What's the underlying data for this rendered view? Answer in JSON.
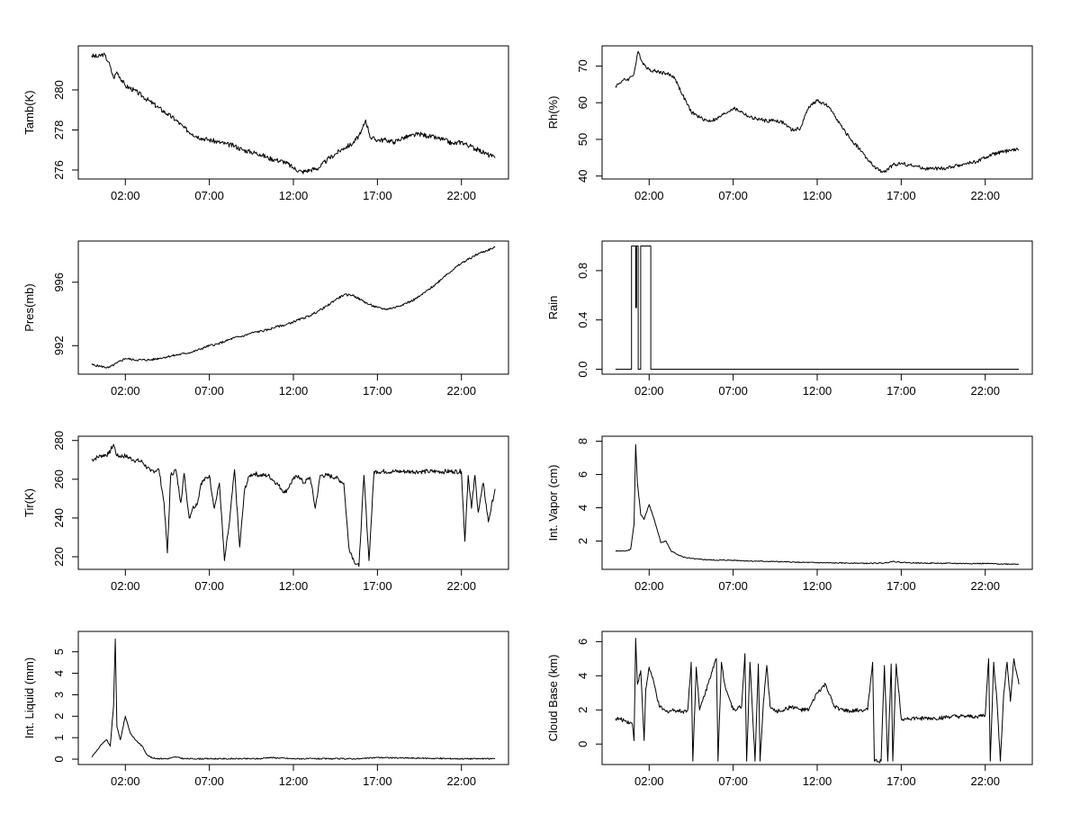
{
  "x_axis": {
    "ticks": [
      "02:00",
      "07:00",
      "12:00",
      "17:00",
      "22:00"
    ],
    "tick_hours": [
      2,
      7,
      12,
      17,
      22
    ],
    "range_hours": [
      -0.8,
      24.8
    ]
  },
  "chart_data": [
    {
      "type": "line",
      "ylabel": "Tamb(K)",
      "yticks": [
        276,
        278,
        280
      ],
      "ylim": [
        275.55,
        282.2
      ],
      "x": [
        0,
        0.4,
        0.7,
        1.0,
        1.3,
        1.5,
        2.0,
        2.5,
        3.0,
        3.5,
        4.0,
        4.5,
        5.0,
        5.5,
        6.0,
        6.5,
        7.0,
        7.5,
        8.0,
        8.5,
        9.0,
        9.5,
        10.0,
        10.5,
        11.0,
        11.5,
        12.0,
        12.5,
        13.0,
        13.5,
        14.0,
        14.5,
        15.0,
        15.5,
        16.0,
        16.3,
        16.6,
        17.0,
        17.5,
        18.0,
        18.5,
        19.0,
        19.5,
        20.0,
        20.5,
        21.0,
        21.5,
        22.0,
        22.5,
        23.0,
        23.5,
        24.0
      ],
      "values": [
        281.7,
        281.65,
        281.8,
        281.4,
        280.6,
        280.9,
        280.2,
        280.0,
        279.7,
        279.4,
        279.1,
        278.8,
        278.5,
        278.1,
        277.8,
        277.6,
        277.5,
        277.4,
        277.3,
        277.2,
        277.0,
        276.9,
        276.8,
        276.6,
        276.5,
        276.4,
        276.1,
        275.9,
        276.0,
        276.1,
        276.5,
        276.8,
        277.1,
        277.3,
        277.8,
        278.5,
        277.6,
        277.5,
        277.5,
        277.4,
        277.6,
        277.7,
        277.8,
        277.7,
        277.6,
        277.5,
        277.3,
        277.4,
        277.2,
        277.0,
        276.8,
        276.6
      ],
      "noise": 0.12
    },
    {
      "type": "line",
      "ylabel": "Rh(%)",
      "yticks": [
        40,
        50,
        60,
        70
      ],
      "ylim": [
        39.2,
        75.5
      ],
      "x": [
        0,
        0.4,
        0.8,
        1.1,
        1.35,
        1.6,
        2.0,
        2.5,
        3.0,
        3.5,
        4.0,
        4.5,
        5.0,
        5.5,
        6.0,
        6.5,
        7.0,
        7.5,
        8.0,
        8.5,
        9.0,
        9.5,
        10.0,
        10.5,
        11.0,
        11.5,
        12.0,
        12.5,
        13.0,
        13.5,
        14.0,
        14.5,
        15.0,
        15.5,
        16.0,
        16.5,
        17.0,
        17.5,
        18.0,
        18.5,
        19.0,
        19.5,
        20.0,
        20.5,
        21.0,
        21.5,
        22.0,
        22.5,
        23.0,
        23.5,
        24.0
      ],
      "values": [
        64.5,
        66,
        66.5,
        68,
        74,
        71,
        69,
        68.5,
        68,
        67,
        62,
        57.5,
        56,
        55,
        55.5,
        57,
        58.5,
        57.5,
        56,
        55.5,
        55,
        55.2,
        54.5,
        52.5,
        53,
        59,
        60.5,
        59.5,
        57,
        53,
        50,
        47.5,
        44.5,
        42,
        41,
        43,
        43.5,
        43,
        42.5,
        42,
        42,
        42,
        42.5,
        43,
        43.5,
        44,
        45,
        46,
        46.5,
        47,
        47.2
      ],
      "noise": 0.5
    },
    {
      "type": "line",
      "ylabel": "Pres(mb)",
      "yticks": [
        992,
        996
      ],
      "ylim": [
        990.2,
        998.6
      ],
      "x": [
        0,
        0.5,
        1.0,
        1.5,
        2.0,
        2.5,
        3.0,
        3.5,
        4.0,
        4.5,
        5.0,
        5.5,
        6.0,
        6.5,
        7.0,
        7.5,
        8.0,
        8.5,
        9.0,
        9.5,
        10.0,
        10.5,
        11.0,
        11.5,
        12.0,
        12.5,
        13.0,
        13.5,
        14.0,
        14.5,
        15.0,
        15.5,
        16.0,
        16.5,
        17.0,
        17.5,
        18.0,
        18.5,
        19.0,
        19.5,
        20.0,
        20.5,
        21.0,
        21.5,
        22.0,
        22.5,
        23.0,
        23.5,
        24.0
      ],
      "values": [
        990.8,
        990.7,
        990.6,
        990.9,
        991.2,
        991.1,
        991.1,
        991.1,
        991.2,
        991.3,
        991.4,
        991.5,
        991.6,
        991.8,
        992.0,
        992.1,
        992.3,
        992.5,
        992.6,
        992.8,
        992.9,
        993.0,
        993.2,
        993.3,
        993.5,
        993.7,
        993.9,
        994.2,
        994.5,
        994.9,
        995.2,
        995.2,
        994.9,
        994.6,
        994.4,
        994.3,
        994.4,
        994.6,
        994.8,
        995.1,
        995.5,
        995.9,
        996.4,
        996.8,
        997.2,
        997.5,
        997.8,
        998.0,
        998.2
      ],
      "noise": 0.07
    },
    {
      "type": "line",
      "ylabel": "Rain",
      "yticks": [
        0.0,
        0.4,
        0.8
      ],
      "ylim": [
        -0.04,
        1.04
      ],
      "x": [
        0,
        0.95,
        0.95,
        1.2,
        1.2,
        1.25,
        1.25,
        1.35,
        1.35,
        1.5,
        1.5,
        1.8,
        1.8,
        2.1,
        2.1,
        24.0
      ],
      "values": [
        0,
        0,
        1,
        1,
        0.5,
        0.5,
        1,
        1,
        0,
        0,
        1,
        1,
        1,
        1,
        0,
        0
      ],
      "noise": 0
    },
    {
      "type": "line",
      "ylabel": "Tir(K)",
      "yticks": [
        220,
        240,
        260,
        280
      ],
      "ylim": [
        213.5,
        282.2
      ],
      "x": [
        0,
        0.5,
        1.0,
        1.3,
        1.5,
        2.0,
        2.5,
        3.0,
        3.5,
        4.0,
        4.3,
        4.5,
        4.7,
        5.0,
        5.3,
        5.5,
        5.8,
        6.0,
        6.3,
        6.5,
        7.0,
        7.3,
        7.6,
        7.9,
        8.2,
        8.5,
        8.8,
        9.1,
        9.4,
        9.7,
        10.0,
        10.5,
        11.0,
        11.5,
        12.0,
        12.3,
        12.6,
        13.0,
        13.3,
        13.6,
        14.0,
        14.5,
        15.0,
        15.3,
        15.6,
        15.9,
        16.2,
        16.5,
        16.8,
        17.0,
        17.5,
        18.0,
        18.5,
        19.0,
        19.5,
        20.0,
        20.5,
        21.0,
        21.5,
        22.0,
        22.2,
        22.4,
        22.6,
        22.8,
        23.0,
        23.3,
        23.6,
        24.0
      ],
      "values": [
        270,
        272,
        273,
        278,
        272,
        272,
        270,
        269,
        264,
        265,
        248,
        222,
        262,
        265,
        248,
        263,
        240,
        245,
        248,
        258,
        262,
        245,
        258,
        218,
        238,
        265,
        225,
        255,
        262,
        263,
        262,
        262,
        258,
        253,
        260,
        262,
        258,
        261,
        245,
        262,
        262,
        261,
        258,
        225,
        218,
        215,
        262,
        218,
        264,
        264,
        264,
        264,
        264,
        264,
        264,
        264,
        264,
        264,
        264,
        264,
        228,
        262,
        245,
        262,
        243,
        258,
        238,
        255
      ],
      "noise": 1.2
    },
    {
      "type": "line",
      "ylabel": "Int. Vapor (cm)",
      "yticks": [
        2,
        4,
        6,
        8
      ],
      "ylim": [
        0.3,
        8.3
      ],
      "x": [
        0,
        0.5,
        0.9,
        1.1,
        1.2,
        1.3,
        1.5,
        1.7,
        2.0,
        2.3,
        2.7,
        3.0,
        3.3,
        3.7,
        4.0,
        4.5,
        5.0,
        6.0,
        7.0,
        8.0,
        9.0,
        10.0,
        11.0,
        12.0,
        13.0,
        14.0,
        15.0,
        16.0,
        16.5,
        17.0,
        18.0,
        19.0,
        20.0,
        21.0,
        22.0,
        23.0,
        24.0
      ],
      "values": [
        1.4,
        1.4,
        1.5,
        3.0,
        7.8,
        5.5,
        3.6,
        3.3,
        4.2,
        3.3,
        1.9,
        2.0,
        1.4,
        1.2,
        1.05,
        0.95,
        0.9,
        0.85,
        0.85,
        0.8,
        0.78,
        0.75,
        0.72,
        0.7,
        0.68,
        0.68,
        0.66,
        0.68,
        0.78,
        0.72,
        0.68,
        0.67,
        0.66,
        0.65,
        0.65,
        0.62,
        0.62
      ],
      "noise": 0.03
    },
    {
      "type": "line",
      "ylabel": "Int. Liquid (mm)",
      "yticks": [
        0,
        1,
        2,
        3,
        4,
        5
      ],
      "ylim": [
        -0.25,
        5.95
      ],
      "x": [
        0,
        0.3,
        0.6,
        0.9,
        1.1,
        1.3,
        1.4,
        1.5,
        1.7,
        2.0,
        2.3,
        2.6,
        3.0,
        3.3,
        3.6,
        4.0,
        4.5,
        5.0,
        5.5,
        6.0,
        8.0,
        10.0,
        10.5,
        12.0,
        14.0,
        16.0,
        17.0,
        18.0,
        20.0,
        22.0,
        24.0
      ],
      "values": [
        0.1,
        0.4,
        0.7,
        0.9,
        0.6,
        2.5,
        5.6,
        1.5,
        0.9,
        2.0,
        1.2,
        0.9,
        0.6,
        0.2,
        0.05,
        0.03,
        0.02,
        0.1,
        0.02,
        0.02,
        0.02,
        0.02,
        0.08,
        0.02,
        0.02,
        0.02,
        0.08,
        0.06,
        0.04,
        0.02,
        0.02
      ],
      "noise": 0.03
    },
    {
      "type": "line",
      "ylabel": "Cloud Base (km)",
      "yticks": [
        0,
        2,
        4,
        6
      ],
      "ylim": [
        -1.2,
        6.6
      ],
      "x": [
        0,
        0.5,
        1.0,
        1.1,
        1.2,
        1.3,
        1.5,
        1.7,
        1.8,
        2.0,
        2.3,
        2.6,
        3.0,
        3.5,
        4.0,
        4.3,
        4.5,
        4.6,
        4.8,
        5.0,
        5.5,
        5.8,
        6.0,
        6.1,
        6.3,
        6.5,
        7.0,
        7.5,
        7.7,
        7.8,
        8.0,
        8.3,
        8.5,
        8.6,
        8.8,
        9.0,
        9.2,
        9.5,
        10.0,
        10.5,
        11.0,
        11.5,
        12.0,
        12.5,
        13.0,
        13.5,
        14.0,
        14.5,
        15.0,
        15.3,
        15.4,
        15.8,
        16.0,
        16.2,
        16.4,
        16.5,
        16.7,
        17.0,
        18.0,
        19.0,
        20.0,
        21.0,
        21.5,
        22.0,
        22.2,
        22.3,
        22.5,
        22.7,
        22.9,
        23.1,
        23.3,
        23.5,
        23.7,
        24.0
      ],
      "values": [
        1.5,
        1.4,
        1.2,
        0.2,
        6.2,
        3.5,
        4.3,
        0.2,
        3.2,
        4.5,
        3.5,
        2.2,
        1.9,
        2.0,
        1.9,
        2.0,
        4.8,
        -1.0,
        4.5,
        2.0,
        3.5,
        4.5,
        5.0,
        -1.0,
        4.8,
        3.5,
        2.0,
        2.2,
        5.3,
        -1.0,
        4.8,
        -1.0,
        4.7,
        -1.0,
        2.5,
        4.6,
        2.2,
        1.9,
        2.0,
        2.2,
        2.0,
        2.0,
        3.0,
        3.5,
        2.2,
        2.0,
        1.9,
        2.0,
        2.0,
        4.8,
        -1.0,
        -1.0,
        4.6,
        -1.0,
        4.7,
        -1.0,
        4.7,
        1.5,
        1.5,
        1.5,
        1.6,
        1.6,
        1.6,
        1.7,
        5.0,
        -1.0,
        4.8,
        2.5,
        -1.0,
        3.0,
        4.8,
        2.5,
        5.0,
        3.5
      ],
      "noise": 0.12
    }
  ]
}
